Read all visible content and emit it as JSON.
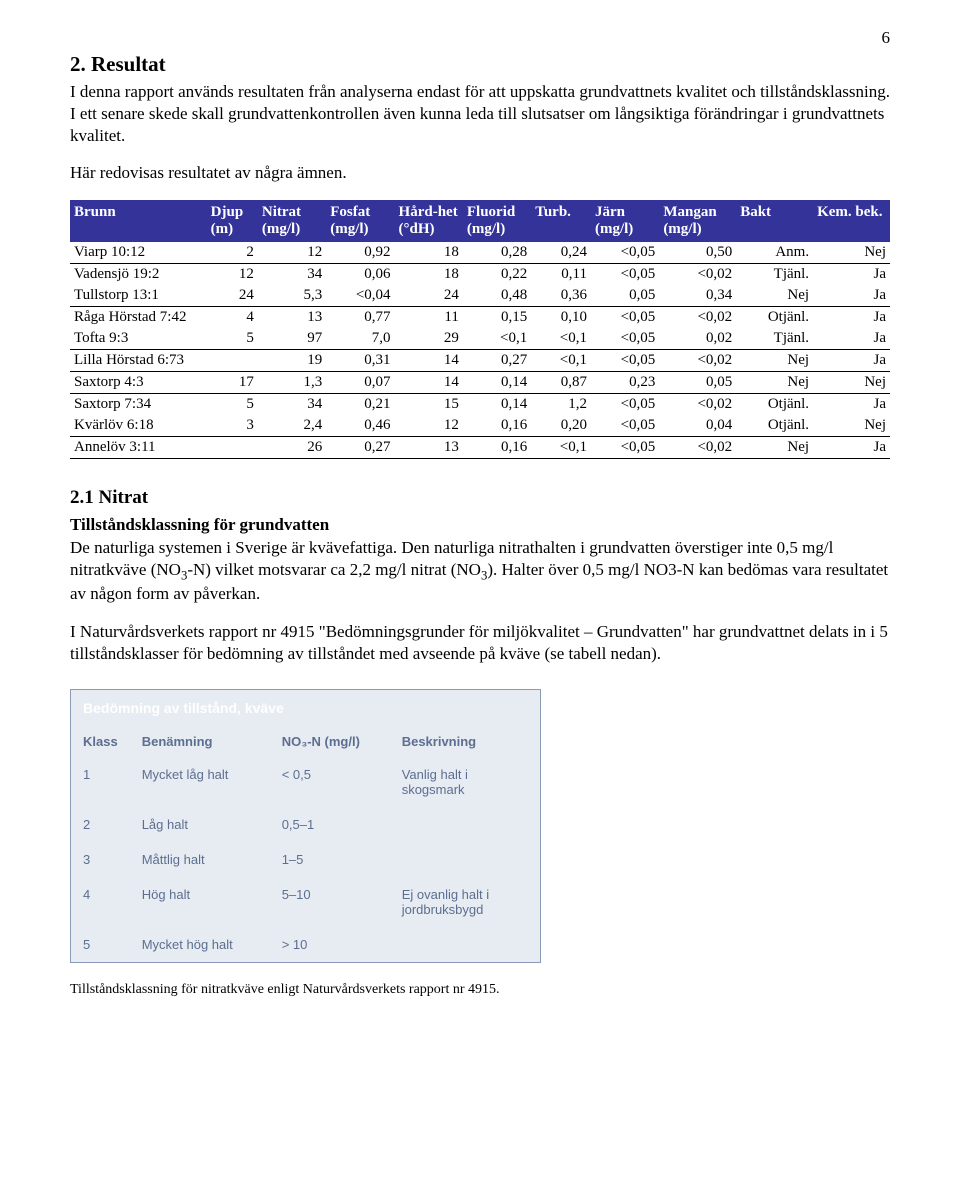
{
  "page_number": "6",
  "section": {
    "heading": "2. Resultat",
    "para1": "I denna rapport används resultaten från analyserna endast för att uppskatta grundvattnets kvalitet och tillståndsklassning. I ett senare skede skall grundvattenkontrollen även kunna leda till slutsatser om långsiktiga förändringar i grundvattnets kvalitet.",
    "para2": "Här redovisas resultatet av några ämnen."
  },
  "data_table": {
    "header_bg": "#333399",
    "header_fg": "#ffffff",
    "col_widths": [
      "16%",
      "6%",
      "8%",
      "8%",
      "8%",
      "8%",
      "7%",
      "8%",
      "9%",
      "9%",
      "9%"
    ],
    "headers": [
      "Brunn",
      "Djup (m)",
      "Nitrat (mg/l)",
      "Fosfat (mg/l)",
      "Hård-het (°dH)",
      "Fluorid (mg/l)",
      "Turb.",
      "Järn (mg/l)",
      "Mangan (mg/l)",
      "Bakt",
      "Kem. bek."
    ],
    "rows": [
      {
        "cells": [
          "Viarp 10:12",
          "2",
          "12",
          "0,92",
          "18",
          "0,28",
          "0,24",
          "<0,05",
          "0,50",
          "Anm.",
          "Nej"
        ],
        "underline": true
      },
      {
        "cells": [
          "Vadensjö 19:2",
          "12",
          "34",
          "0,06",
          "18",
          "0,22",
          "0,11",
          "<0,05",
          "<0,02",
          "Tjänl.",
          "Ja"
        ],
        "underline": false
      },
      {
        "cells": [
          "Tullstorp 13:1",
          "24",
          "5,3",
          "<0,04",
          "24",
          "0,48",
          "0,36",
          "0,05",
          "0,34",
          "Nej",
          "Ja"
        ],
        "underline": true
      },
      {
        "cells": [
          "Råga Hörstad 7:42",
          "4",
          "13",
          "0,77",
          "11",
          "0,15",
          "0,10",
          "<0,05",
          "<0,02",
          "Otjänl.",
          "Ja"
        ],
        "underline": false
      },
      {
        "cells": [
          "Tofta 9:3",
          "5",
          "97",
          "7,0",
          "29",
          "<0,1",
          "<0,1",
          "<0,05",
          "0,02",
          "Tjänl.",
          "Ja"
        ],
        "underline": true
      },
      {
        "cells": [
          "Lilla Hörstad 6:73",
          "",
          "19",
          "0,31",
          "14",
          "0,27",
          "<0,1",
          "<0,05",
          "<0,02",
          "Nej",
          "Ja"
        ],
        "underline": true
      },
      {
        "cells": [
          "Saxtorp 4:3",
          "17",
          "1,3",
          "0,07",
          "14",
          "0,14",
          "0,87",
          "0,23",
          "0,05",
          "Nej",
          "Nej"
        ],
        "underline": true
      },
      {
        "cells": [
          "Saxtorp 7:34",
          "5",
          "34",
          "0,21",
          "15",
          "0,14",
          "1,2",
          "<0,05",
          "<0,02",
          "Otjänl.",
          "Ja"
        ],
        "underline": false
      },
      {
        "cells": [
          "Kvärlöv 6:18",
          "3",
          "2,4",
          "0,46",
          "12",
          "0,16",
          "0,20",
          "<0,05",
          "0,04",
          "Otjänl.",
          "Nej"
        ],
        "underline": true
      },
      {
        "cells": [
          "Annelöv 3:11",
          "",
          "26",
          "0,27",
          "13",
          "0,16",
          "<0,1",
          "<0,05",
          "<0,02",
          "Nej",
          "Ja"
        ],
        "underline": true
      }
    ]
  },
  "nitrate": {
    "heading": "2.1 Nitrat",
    "sub_bold": "Tillståndsklassning för grundvatten",
    "para1_a": "De naturliga systemen i Sverige är kvävefattiga. Den naturliga nitrathalten i grundvatten överstiger inte 0,5 mg/l nitratkväve (NO",
    "para1_b": "-N) vilket motsvarar ca 2,2 mg/l nitrat (NO",
    "para1_c": "). Halter över 0,5 mg/l NO3-N kan bedömas vara resultatet av någon form av påverkan.",
    "para2": " I Naturvårdsverkets rapport nr 4915 \"Bedömningsgrunder för miljökvalitet – Grundvatten\" har grundvattnet delats in i 5 tillståndsklasser för bedömning av tillståndet med avseende på kväve (se tabell nedan)."
  },
  "class_table": {
    "title": "Bedömning av tillstånd, kväve",
    "title_bg": "#8a9bb8",
    "title_fg": "#ffffff",
    "cell_bg": "#e7ebf2",
    "text_color": "#5c6f90",
    "col_widths": [
      "55px",
      "140px",
      "120px",
      "150px"
    ],
    "headers": [
      "Klass",
      "Benämning",
      "NO₃-N (mg/l)",
      "Beskrivning"
    ],
    "rows": [
      [
        "1",
        "Mycket låg halt",
        "< 0,5",
        "Vanlig halt i skogsmark"
      ],
      [
        "2",
        "Låg halt",
        "0,5–1",
        ""
      ],
      [
        "3",
        "Måttlig halt",
        "1–5",
        ""
      ],
      [
        "4",
        "Hög halt",
        "5–10",
        "Ej ovanlig halt i jordbruksbygd"
      ],
      [
        "5",
        "Mycket hög halt",
        "> 10",
        ""
      ]
    ]
  },
  "caption": "Tillståndsklassning för nitratkväve enligt Naturvårdsverkets rapport nr 4915."
}
